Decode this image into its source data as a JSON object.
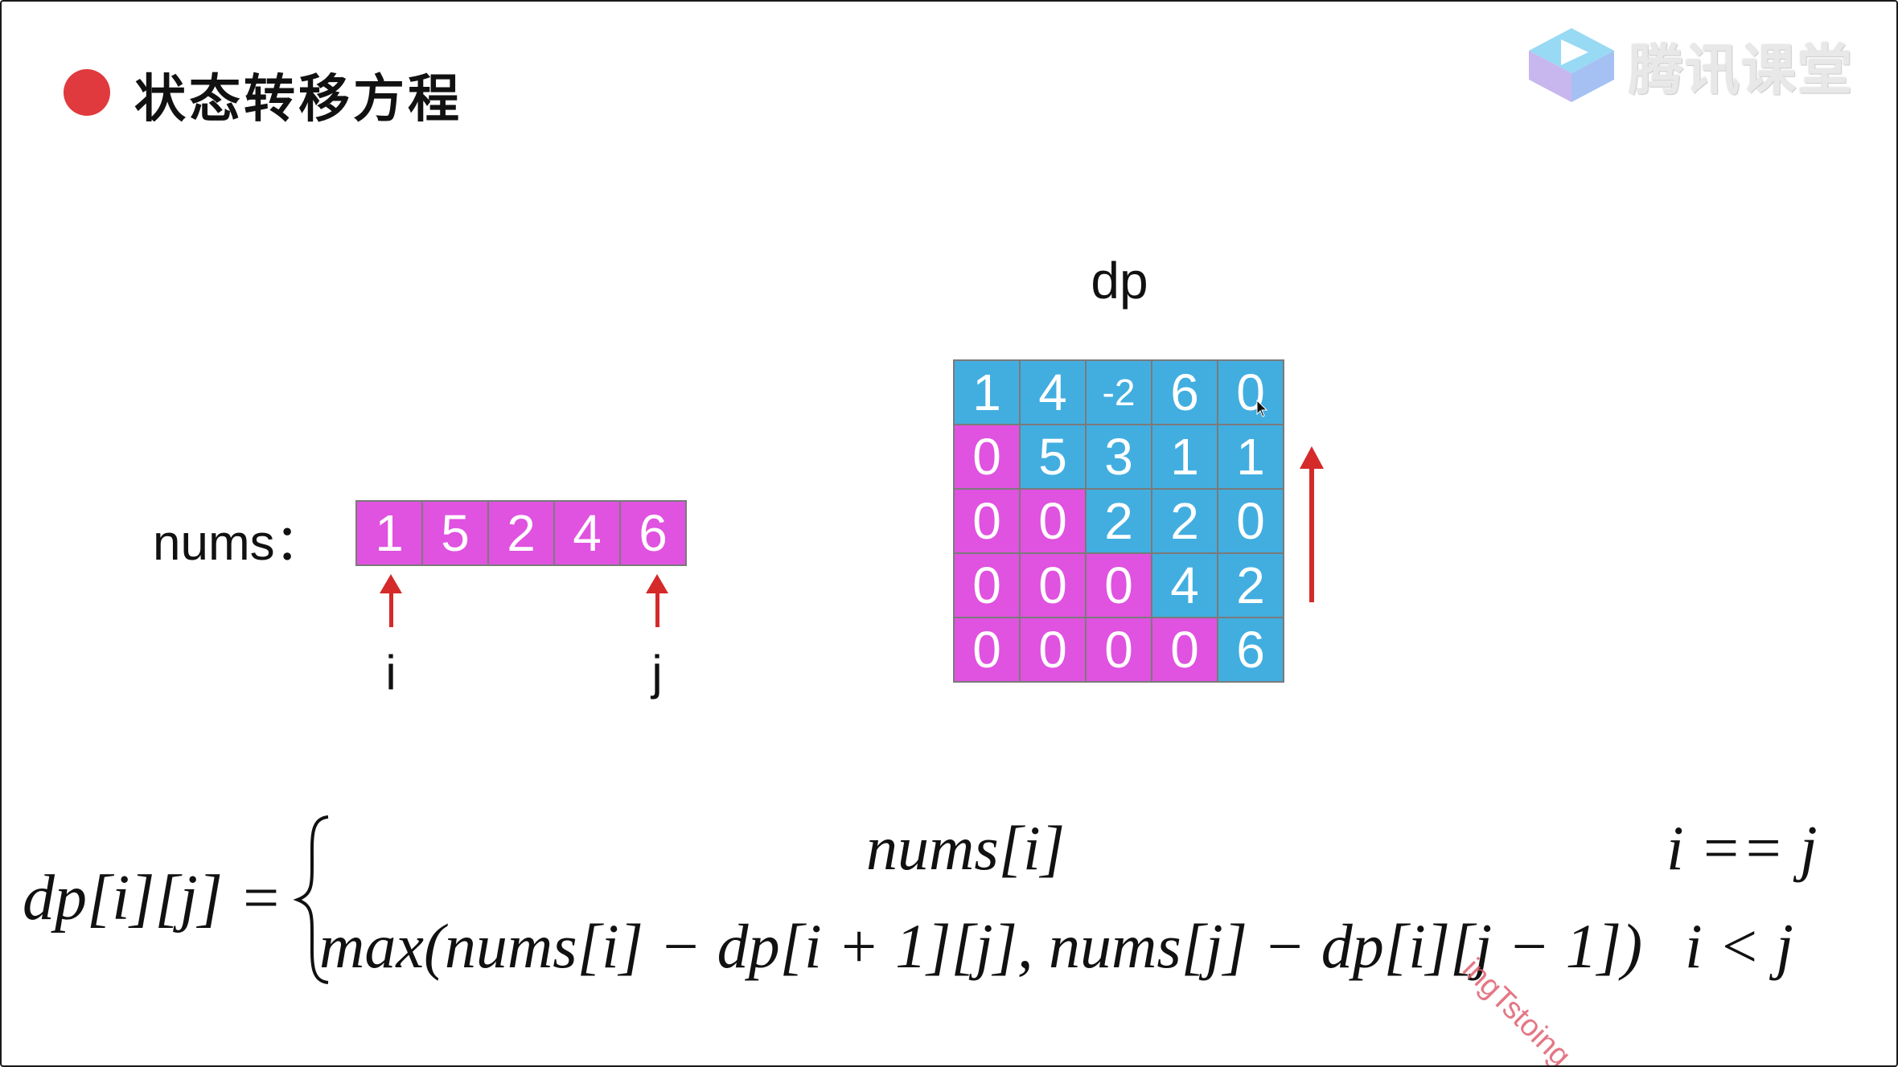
{
  "header": {
    "title": "状态转移方程",
    "bullet_color": "#e03a3e"
  },
  "brand": {
    "name": "腾讯课堂",
    "icon": "tencent-classroom-logo-icon"
  },
  "nums": {
    "label": "nums：",
    "values": [
      "1",
      "5",
      "2",
      "4",
      "6"
    ],
    "cell_color": "#e052e0",
    "pointer_i": "i",
    "pointer_j": "j",
    "arrow_color": "#d42a2a"
  },
  "dp": {
    "title": "dp",
    "rows": [
      [
        {
          "v": "1",
          "c": "blue"
        },
        {
          "v": "4",
          "c": "blue"
        },
        {
          "v": "-2",
          "c": "blue"
        },
        {
          "v": "6",
          "c": "blue"
        },
        {
          "v": "0",
          "c": "blue"
        }
      ],
      [
        {
          "v": "0",
          "c": "pink"
        },
        {
          "v": "5",
          "c": "blue"
        },
        {
          "v": "3",
          "c": "blue"
        },
        {
          "v": "1",
          "c": "blue"
        },
        {
          "v": "1",
          "c": "blue"
        }
      ],
      [
        {
          "v": "0",
          "c": "pink"
        },
        {
          "v": "0",
          "c": "pink"
        },
        {
          "v": "2",
          "c": "blue"
        },
        {
          "v": "2",
          "c": "blue"
        },
        {
          "v": "0",
          "c": "blue"
        }
      ],
      [
        {
          "v": "0",
          "c": "pink"
        },
        {
          "v": "0",
          "c": "pink"
        },
        {
          "v": "0",
          "c": "pink"
        },
        {
          "v": "4",
          "c": "blue"
        },
        {
          "v": "2",
          "c": "blue"
        }
      ],
      [
        {
          "v": "0",
          "c": "pink"
        },
        {
          "v": "0",
          "c": "pink"
        },
        {
          "v": "0",
          "c": "pink"
        },
        {
          "v": "0",
          "c": "pink"
        },
        {
          "v": "6",
          "c": "blue"
        }
      ]
    ],
    "blue_color": "#42aee0",
    "pink_color": "#e052e0",
    "direction_arrow": "up"
  },
  "formula": {
    "lhs": "dp[i][j] =",
    "case1_expr": "nums[i]",
    "case1_cond": "i == j",
    "case2_expr": "max(nums[i] − dp[i + 1][j],   nums[j] − dp[i][j − 1])",
    "case2_cond": "i < j"
  },
  "overlay": {
    "user_watermark": "ingTstoing"
  }
}
